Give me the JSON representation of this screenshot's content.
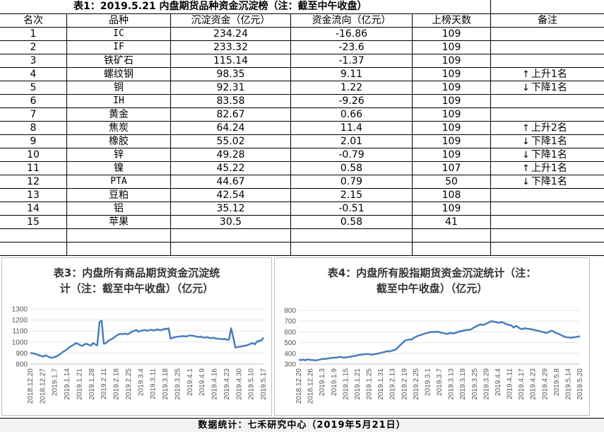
{
  "title": "表1：2019.5.21 内盘期货品种资金沉淀榜（注：截至中午收盘）",
  "headers": [
    "名次",
    "品种",
    "沉淀资金（亿元）",
    "资金流向（亿元）",
    "上榜天数",
    "备注"
  ],
  "rows": [
    {
      "rank": "1",
      "name": "IC",
      "capital": "234.24",
      "flow": "-16.86",
      "days": "109",
      "note": ""
    },
    {
      "rank": "2",
      "name": "IF",
      "capital": "233.32",
      "flow": "-23.6",
      "days": "109",
      "note": ""
    },
    {
      "rank": "3",
      "name": "铁矿石",
      "capital": "115.14",
      "flow": "-1.37",
      "days": "109",
      "note": ""
    },
    {
      "rank": "4",
      "name": "螺纹钢",
      "capital": "98.35",
      "flow": "9.11",
      "days": "109",
      "note": "上升1名",
      "dir": "up"
    },
    {
      "rank": "5",
      "name": "铜",
      "capital": "92.31",
      "flow": "1.22",
      "days": "109",
      "note": "下降1名",
      "dir": "down"
    },
    {
      "rank": "6",
      "name": "IH",
      "capital": "83.58",
      "flow": "-9.26",
      "days": "109",
      "note": ""
    },
    {
      "rank": "7",
      "name": "黄金",
      "capital": "82.67",
      "flow": "0.66",
      "days": "109",
      "note": ""
    },
    {
      "rank": "8",
      "name": "焦炭",
      "capital": "64.24",
      "flow": "11.4",
      "days": "109",
      "note": "上升2名",
      "dir": "up"
    },
    {
      "rank": "9",
      "name": "橡胶",
      "capital": "55.02",
      "flow": "2.01",
      "days": "109",
      "note": "下降1名",
      "dir": "down"
    },
    {
      "rank": "10",
      "name": "锌",
      "capital": "49.28",
      "flow": "-0.79",
      "days": "109",
      "note": "下降1名",
      "dir": "down"
    },
    {
      "rank": "11",
      "name": "镍",
      "capital": "45.22",
      "flow": "0.58",
      "days": "107",
      "note": "上升1名",
      "dir": "up"
    },
    {
      "rank": "12",
      "name": "PTA",
      "capital": "44.67",
      "flow": "0.79",
      "days": "50",
      "note": "下降1名",
      "dir": "down"
    },
    {
      "rank": "13",
      "name": "豆粕",
      "capital": "42.54",
      "flow": "2.15",
      "days": "108",
      "note": ""
    },
    {
      "rank": "14",
      "name": "铝",
      "capital": "35.12",
      "flow": "-0.51",
      "days": "109",
      "note": ""
    },
    {
      "rank": "15",
      "name": "苹果",
      "capital": "30.5",
      "flow": "0.58",
      "days": "41",
      "note": ""
    }
  ],
  "icons": {
    "up": "arrow-up-icon",
    "down": "arrow-down-icon"
  },
  "chart_data": [
    {
      "type": "line",
      "title": "表3：内盘所有商品期货资金沉淀统计（注：截至中午收盘）（亿元）",
      "title_lines": [
        "表3：内盘所有商品期货资金沉淀统",
        "计（注：截至中午收盘）（亿元）"
      ],
      "color": "#4a7ebb",
      "ylim": [
        800,
        1300
      ],
      "yticks": [
        800,
        900,
        1000,
        1100,
        1200,
        1300
      ],
      "xticks": [
        "2018.12.20",
        "2018.12.27",
        "2019.1.7",
        "2019.1.14",
        "2019.1.21",
        "2019.1.28",
        "2019.2.11",
        "2019.2.18",
        "2019.2.25",
        "2019.3.4",
        "2019.3.11",
        "2019.3.18",
        "2019.3.25",
        "2019.4.1",
        "2019.4.9",
        "2019.4.16",
        "2019.4.23",
        "2019.4.30",
        "2019.5.10",
        "2019.5.17"
      ],
      "values": [
        900,
        898,
        895,
        888,
        880,
        875,
        868,
        880,
        872,
        860,
        858,
        862,
        870,
        880,
        895,
        910,
        920,
        935,
        950,
        965,
        975,
        990,
        985,
        972,
        965,
        978,
        985,
        975,
        968,
        990,
        980,
        970,
        1180,
        1195,
        985,
        990,
        1010,
        1020,
        1030,
        1045,
        1060,
        1070,
        1075,
        1072,
        1078,
        1070,
        1080,
        1095,
        1100,
        1110,
        1095,
        1100,
        1105,
        1110,
        1102,
        1108,
        1112,
        1105,
        1110,
        1115,
        1108,
        1110,
        1120,
        1118,
        1125,
        1030,
        1040,
        1045,
        1048,
        1050,
        1052,
        1055,
        1050,
        1055,
        1060,
        1058,
        1055,
        1048,
        1045,
        1050,
        1040,
        1042,
        1045,
        1038,
        1035,
        1040,
        1030,
        1032,
        1028,
        1025,
        1030,
        1020,
        1022,
        1125,
        1040,
        950,
        955,
        958,
        962,
        965,
        970,
        975,
        985,
        990,
        980,
        1005,
        1010,
        1015,
        1040
      ]
    },
    {
      "type": "line",
      "title": "表4：内盘所有股指期货资金沉淀统计（注：截至中午收盘）（亿元）",
      "title_lines": [
        "表4：内盘所有股指期货资金沉淀统计（注：",
        "截至中午收盘）（亿元）"
      ],
      "color": "#4a7ebb",
      "ylim": [
        300,
        800
      ],
      "yticks": [
        300,
        400,
        500,
        600,
        700,
        800
      ],
      "xticks": [
        "2018.12.20",
        "2018.12.26",
        "2019.1.3",
        "2019.1.9",
        "2019.1.15",
        "2019.1.21",
        "2019.1.25",
        "2019.1.31",
        "2019.2.13",
        "2019.2.19",
        "2019.2.25",
        "2019.3.1",
        "2019.3.7",
        "2019.3.13",
        "2019.3.19",
        "2019.3.25",
        "2019.3.29",
        "2019.4.4",
        "2019.4.11",
        "2019.4.17",
        "2019.4.23",
        "2019.4.29",
        "2019.5.8",
        "2019.5.14",
        "2019.5.20"
      ],
      "values": [
        340,
        338,
        342,
        335,
        345,
        340,
        338,
        336,
        335,
        340,
        345,
        350,
        348,
        352,
        355,
        358,
        360,
        362,
        365,
        368,
        360,
        362,
        365,
        368,
        372,
        375,
        380,
        385,
        388,
        390,
        392,
        395,
        390,
        388,
        392,
        395,
        400,
        405,
        410,
        415,
        420,
        418,
        425,
        430,
        440,
        460,
        480,
        500,
        520,
        525,
        530,
        528,
        545,
        555,
        565,
        570,
        578,
        585,
        590,
        595,
        600,
        598,
        602,
        600,
        595,
        590,
        585,
        580,
        588,
        590,
        585,
        592,
        600,
        605,
        610,
        615,
        618,
        620,
        625,
        640,
        650,
        660,
        670,
        665,
        670,
        680,
        690,
        700,
        695,
        690,
        685,
        688,
        690,
        680,
        670,
        665,
        660,
        640,
        655,
        645,
        630,
        625,
        635,
        630,
        628,
        625,
        620,
        615,
        610,
        605,
        600,
        595,
        590,
        600,
        610,
        605,
        590,
        585,
        575,
        565,
        555,
        550,
        548,
        545,
        550,
        552,
        555,
        560
      ]
    }
  ],
  "footer": "数据统计：七禾研究中心（2019年5月21日）"
}
